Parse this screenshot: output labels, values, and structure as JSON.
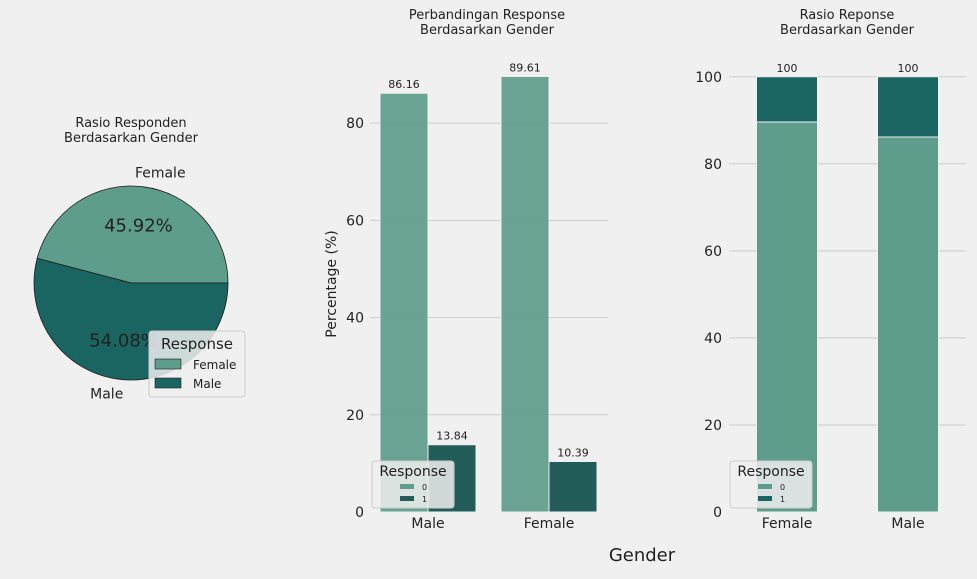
{
  "figure": {
    "xlabel": "Gender"
  },
  "colors": {
    "background": "#f0f0f0",
    "grid": "#cbcbcb",
    "green": "#5e9c8c",
    "teal": "#1a6461",
    "dark_teal": "#235d5a"
  },
  "chart_data": [
    {
      "type": "pie",
      "title": "Rasio Responden\nBerdasarkan Gender",
      "labels": [
        "Female",
        "Male"
      ],
      "values": [
        45.92,
        54.08
      ],
      "value_labels": [
        "45.92%",
        "54.08%"
      ],
      "legend": {
        "title": "Response",
        "entries": [
          "Female",
          "Male"
        ],
        "placement": "lower-right"
      }
    },
    {
      "type": "bar",
      "title": "Perbandingan Response\nBerdasarkan Gender",
      "ylabel": "Percentage (%)",
      "categories": [
        "Male",
        "Female"
      ],
      "ylim": [
        0,
        93
      ],
      "yticks": [
        0,
        20,
        40,
        60,
        80
      ],
      "series": [
        {
          "name": "0",
          "values": [
            86.16,
            89.61
          ],
          "value_labels": [
            "86.16",
            "89.61"
          ]
        },
        {
          "name": "1",
          "values": [
            13.84,
            10.39
          ],
          "value_labels": [
            "13.84",
            "10.39"
          ]
        }
      ],
      "legend": {
        "title": "Response",
        "entries": [
          "0",
          "1"
        ],
        "placement": "lower-left"
      },
      "grid": true
    },
    {
      "type": "bar",
      "stacked": true,
      "title": "Rasio Reponse\nBerdasarkan Gender",
      "categories": [
        "Female",
        "Male"
      ],
      "ylim": [
        0,
        105
      ],
      "yticks": [
        0,
        20,
        40,
        60,
        80,
        100
      ],
      "series": [
        {
          "name": "0",
          "values": [
            89.61,
            86.16
          ],
          "value_labels": [
            "89.61",
            "86.16"
          ]
        },
        {
          "name": "1",
          "values": [
            10.39,
            13.84
          ],
          "value_labels": [
            "100",
            "100"
          ]
        }
      ],
      "legend": {
        "title": "Response",
        "entries": [
          "0",
          "1"
        ],
        "placement": "lower-left"
      },
      "grid": true
    }
  ]
}
